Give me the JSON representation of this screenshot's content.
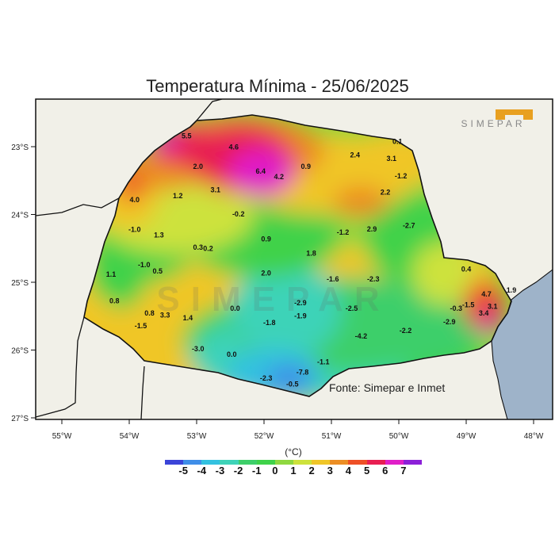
{
  "title": "Temperatura Mínima - 25/06/2025",
  "logo_text": "SIMEPAR",
  "watermark_text": "SIMEPAR",
  "source_text": "Fonte: Simepar e Inmet",
  "scale_label": "(°C)",
  "lon_ticks": [
    "55°W",
    "54°W",
    "53°W",
    "52°W",
    "51°W",
    "50°W",
    "49°W",
    "48°W"
  ],
  "lat_ticks": [
    "23°S",
    "24°S",
    "25°S",
    "26°S",
    "27°S"
  ],
  "scale_ticks": [
    "-5",
    "-4",
    "-3",
    "-2",
    "-1",
    "0",
    "1",
    "2",
    "3",
    "4",
    "5",
    "6",
    "7"
  ],
  "colors": {
    "ocean": "#9eb3c9",
    "land_outside": "#f1f0e8",
    "logo_accent": "#e8a020",
    "bins": [
      "#3b44d8",
      "#3f8ee8",
      "#33c1e0",
      "#3ed3b8",
      "#3ecf6a",
      "#3fd24a",
      "#8fd840",
      "#cde23c",
      "#f0c628",
      "#ec8e24",
      "#ee5026",
      "#e81e52",
      "#e01ec8",
      "#8c20d8"
    ]
  },
  "stations": [
    {
      "v": "5.5",
      "lon": -53.15,
      "lat": -22.88
    },
    {
      "v": "4.6",
      "lon": -52.45,
      "lat": -23.04
    },
    {
      "v": "2.0",
      "lon": -52.98,
      "lat": -23.33
    },
    {
      "v": "6.4",
      "lon": -52.05,
      "lat": -23.4
    },
    {
      "v": "4.2",
      "lon": -51.78,
      "lat": -23.48
    },
    {
      "v": "0.9",
      "lon": -51.38,
      "lat": -23.33
    },
    {
      "v": "0.1",
      "lon": -50.02,
      "lat": -22.96
    },
    {
      "v": "2.4",
      "lon": -50.65,
      "lat": -23.16
    },
    {
      "v": "3.1",
      "lon": -50.11,
      "lat": -23.21
    },
    {
      "v": "-1.2",
      "lon": -49.97,
      "lat": -23.47
    },
    {
      "v": "3.1",
      "lon": -52.72,
      "lat": -23.67
    },
    {
      "v": "1.2",
      "lon": -53.28,
      "lat": -23.76
    },
    {
      "v": "4.0",
      "lon": -53.92,
      "lat": -23.82
    },
    {
      "v": "2.2",
      "lon": -50.2,
      "lat": -23.71
    },
    {
      "v": "-0.2",
      "lon": -52.38,
      "lat": -24.03
    },
    {
      "v": "2.9",
      "lon": -50.4,
      "lat": -24.25
    },
    {
      "v": "-2.7",
      "lon": -49.85,
      "lat": -24.2
    },
    {
      "v": "-1.0",
      "lon": -53.92,
      "lat": -24.26
    },
    {
      "v": "1.3",
      "lon": -53.56,
      "lat": -24.34
    },
    {
      "v": "-1.2",
      "lon": -50.83,
      "lat": -24.3
    },
    {
      "v": "0.9",
      "lon": -51.97,
      "lat": -24.4
    },
    {
      "v": "0.3",
      "lon": -52.98,
      "lat": -24.52
    },
    {
      "v": "0.2",
      "lon": -52.83,
      "lat": -24.54
    },
    {
      "v": "1.8",
      "lon": -51.3,
      "lat": -24.61
    },
    {
      "v": "-1.0",
      "lon": -53.78,
      "lat": -24.78
    },
    {
      "v": "0.5",
      "lon": -53.58,
      "lat": -24.87
    },
    {
      "v": "0.4",
      "lon": -49.0,
      "lat": -24.84
    },
    {
      "v": "1.1",
      "lon": -54.27,
      "lat": -24.92
    },
    {
      "v": "2.0",
      "lon": -51.97,
      "lat": -24.9
    },
    {
      "v": "-1.6",
      "lon": -50.98,
      "lat": -24.99
    },
    {
      "v": "-2.3",
      "lon": -50.38,
      "lat": -24.99
    },
    {
      "v": "4.7",
      "lon": -48.7,
      "lat": -25.21
    },
    {
      "v": "1.9",
      "lon": -48.33,
      "lat": -25.15
    },
    {
      "v": "0.8",
      "lon": -54.22,
      "lat": -25.31
    },
    {
      "v": "0.0",
      "lon": -52.43,
      "lat": -25.42
    },
    {
      "v": "-2.9",
      "lon": -51.46,
      "lat": -25.34
    },
    {
      "v": "-2.5",
      "lon": -50.7,
      "lat": -25.42
    },
    {
      "v": "-1.5",
      "lon": -48.97,
      "lat": -25.37
    },
    {
      "v": "-0.3",
      "lon": -49.15,
      "lat": -25.42
    },
    {
      "v": "3.1",
      "lon": -48.61,
      "lat": -25.39
    },
    {
      "v": "3.4",
      "lon": -48.74,
      "lat": -25.49
    },
    {
      "v": "0.8",
      "lon": -53.7,
      "lat": -25.49
    },
    {
      "v": "3.3",
      "lon": -53.47,
      "lat": -25.52
    },
    {
      "v": "1.4",
      "lon": -53.13,
      "lat": -25.56
    },
    {
      "v": "-1.9",
      "lon": -51.46,
      "lat": -25.53
    },
    {
      "v": "-2.9",
      "lon": -49.25,
      "lat": -25.62
    },
    {
      "v": "-1.8",
      "lon": -51.92,
      "lat": -25.63
    },
    {
      "v": "-1.5",
      "lon": -53.83,
      "lat": -25.68
    },
    {
      "v": "-2.2",
      "lon": -49.9,
      "lat": -25.75
    },
    {
      "v": "-4.2",
      "lon": -50.56,
      "lat": -25.83
    },
    {
      "v": "-3.0",
      "lon": -52.98,
      "lat": -26.02
    },
    {
      "v": "0.0",
      "lon": -52.48,
      "lat": -26.1
    },
    {
      "v": "-1.1",
      "lon": -51.12,
      "lat": -26.21
    },
    {
      "v": "-7.8",
      "lon": -51.43,
      "lat": -26.36
    },
    {
      "v": "-2.3",
      "lon": -51.97,
      "lat": -26.45
    },
    {
      "v": "-0.5",
      "lon": -51.58,
      "lat": -26.54
    }
  ]
}
